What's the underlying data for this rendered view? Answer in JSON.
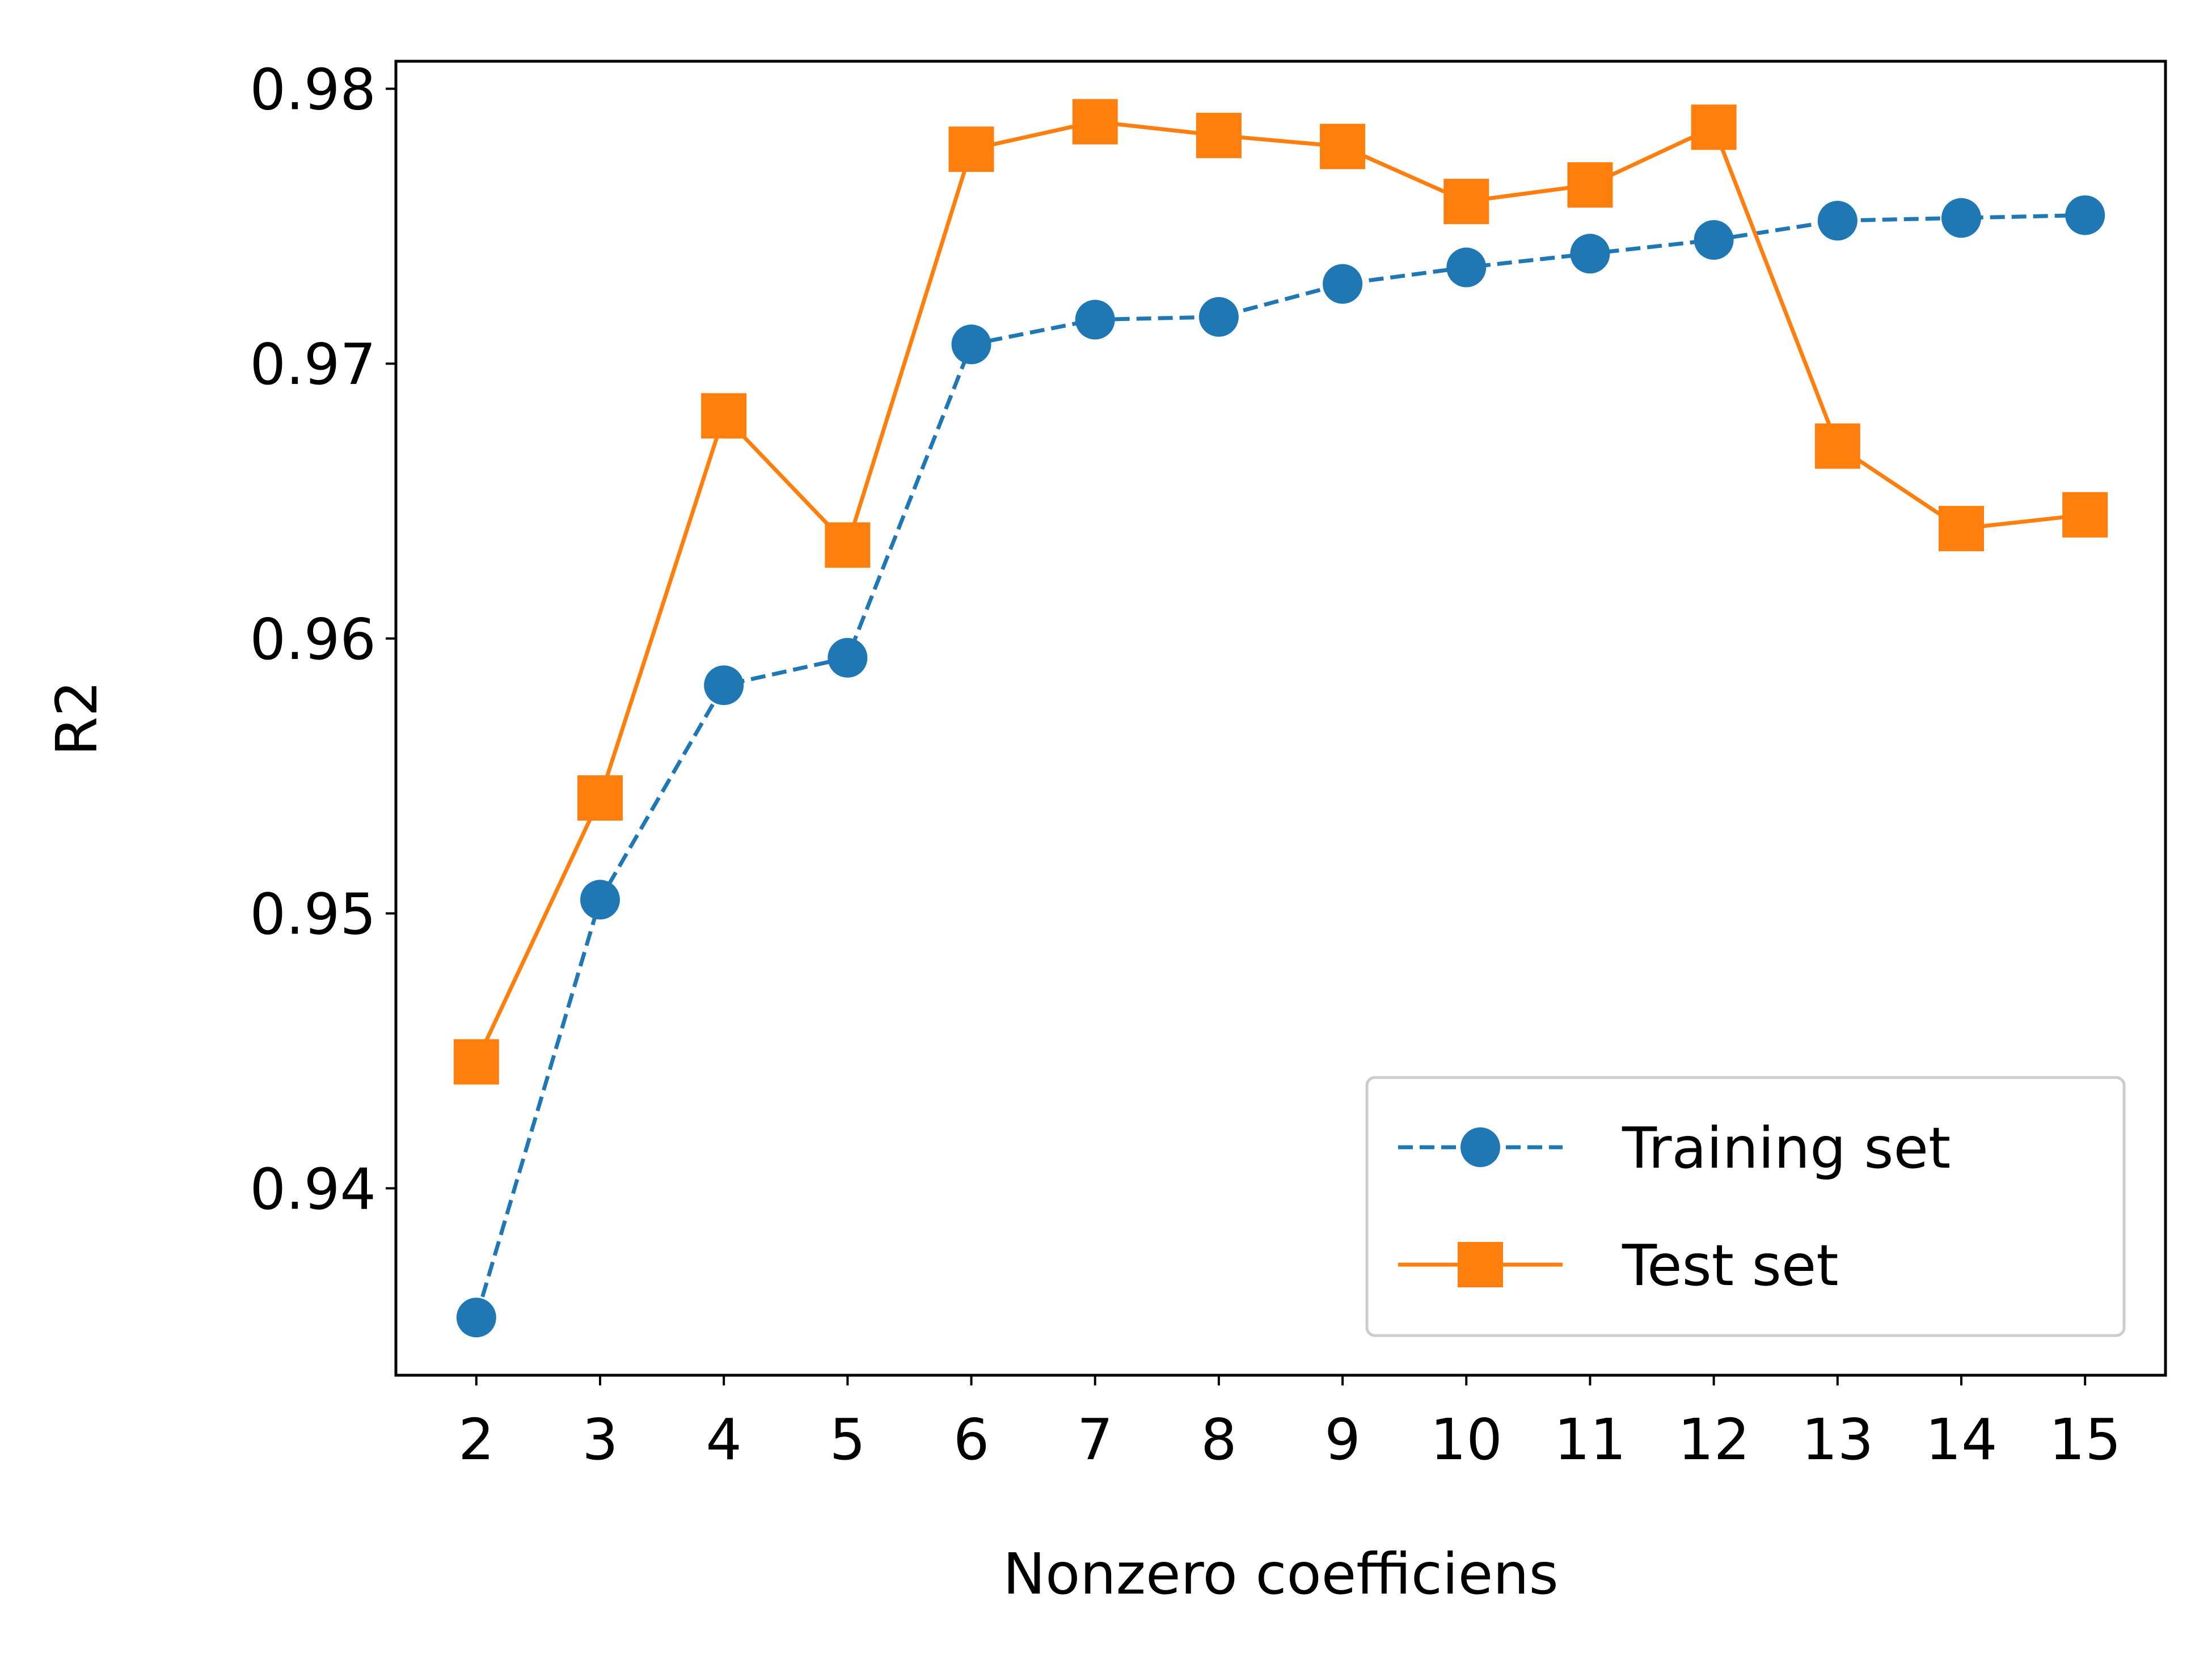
{
  "chart_data": {
    "type": "line",
    "title": "",
    "xlabel": "Nonzero coefficiens",
    "ylabel": "R2",
    "x": [
      2,
      3,
      4,
      5,
      6,
      7,
      8,
      9,
      10,
      11,
      12,
      13,
      14,
      15
    ],
    "xticks": [
      "2",
      "3",
      "4",
      "5",
      "6",
      "7",
      "8",
      "9",
      "10",
      "11",
      "12",
      "13",
      "14",
      "15"
    ],
    "xlim": [
      1.35,
      15.65
    ],
    "yticks": [
      0.94,
      0.95,
      0.96,
      0.97,
      0.98
    ],
    "ytick_labels": [
      "0.94",
      "0.95",
      "0.96",
      "0.97",
      "0.98"
    ],
    "ylim": [
      0.9332,
      0.981
    ],
    "grid": false,
    "legend_position": "lower-right",
    "series": [
      {
        "name": "Training set",
        "color": "#1f77b4",
        "line_style": "dashed",
        "marker": "circle",
        "values": [
          0.9353,
          0.9505,
          0.9583,
          0.9593,
          0.9707,
          0.9716,
          0.9717,
          0.9729,
          0.9735,
          0.974,
          0.9745,
          0.9752,
          0.9753,
          0.9754
        ]
      },
      {
        "name": "Test set",
        "color": "#ff7f0e",
        "line_style": "solid",
        "marker": "square",
        "values": [
          0.9446,
          0.9542,
          0.9681,
          0.9634,
          0.9778,
          0.9788,
          0.9783,
          0.9779,
          0.9759,
          0.9765,
          0.9786,
          0.967,
          0.964,
          0.9645
        ]
      }
    ]
  }
}
